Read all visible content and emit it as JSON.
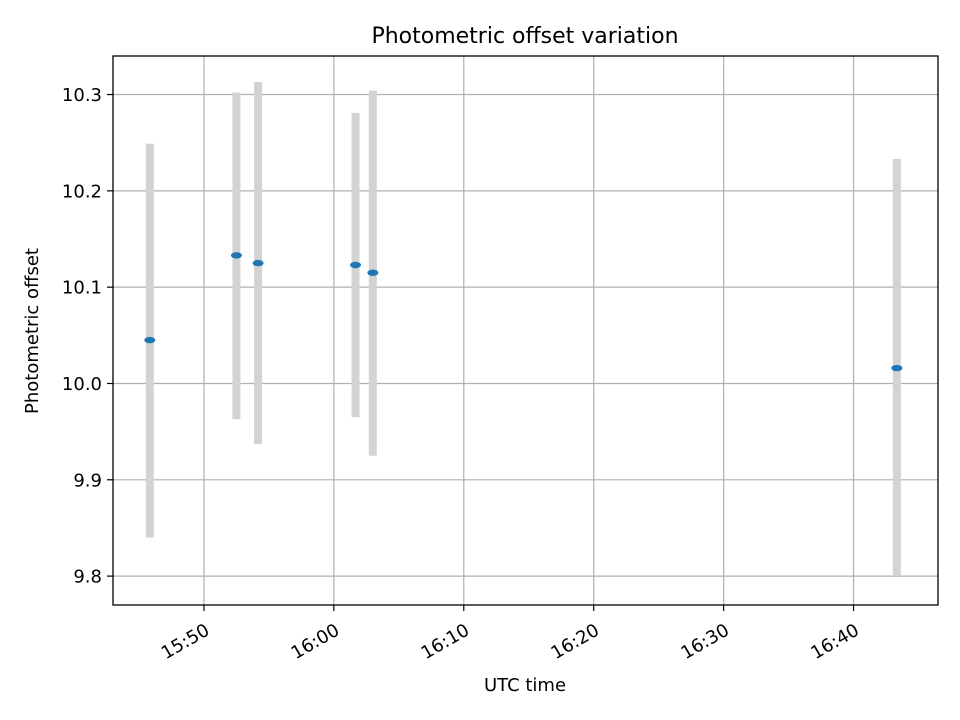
{
  "chart_data": {
    "type": "scatter",
    "title": "Photometric offset variation",
    "xlabel": "UTC time",
    "ylabel": "Photometric offset",
    "xlim": [
      "15:43:00",
      "16:46:30"
    ],
    "ylim": [
      9.77,
      10.34
    ],
    "grid": true,
    "x_ticks": [
      "15:50",
      "16:00",
      "16:10",
      "16:20",
      "16:30",
      "16:40"
    ],
    "y_ticks": [
      "9.8",
      "9.9",
      "10.0",
      "10.1",
      "10.2",
      "10.3"
    ],
    "series": [
      {
        "x": [
          "15:45:50",
          "15:52:30",
          "15:54:10",
          "16:01:40",
          "16:03:00",
          "16:43:20"
        ],
        "y": [
          10.045,
          10.133,
          10.125,
          10.123,
          10.115,
          10.016
        ],
        "yerr_low": [
          9.84,
          9.963,
          9.937,
          9.965,
          9.925,
          9.8
        ],
        "yerr_high": [
          10.249,
          10.302,
          10.313,
          10.281,
          10.304,
          10.233
        ],
        "marker_color": "#1f77b4",
        "errorbar_color": "#d3d3d3"
      }
    ]
  }
}
